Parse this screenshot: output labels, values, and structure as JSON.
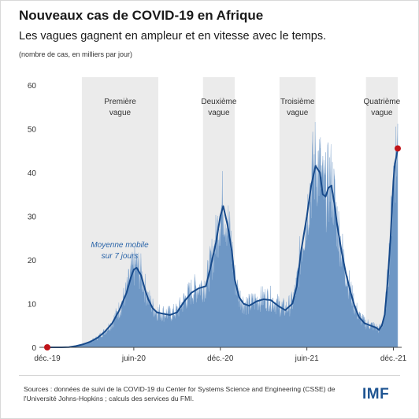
{
  "title": "Nouveaux cas de COVID-19 en Afrique",
  "subtitle": "Les vagues gagnent en ampleur et en vitesse avec le temps.",
  "unit_note": "(nombre de cas, en milliers par jour)",
  "footer": "Sources : données de suivi de la COVID-19 du Center for Systems Science and Engineering (CSSE) de l'Université Johns-Hopkins ; calculs des services du FMI.",
  "logo": "IMF",
  "colors": {
    "area": "#6e97c5",
    "line": "#174a8b",
    "wave_band": "#ebebeb",
    "marker": "#c0141a",
    "annotation": "#2a64a8"
  },
  "chart_data": {
    "type": "area",
    "ylim": [
      0,
      60
    ],
    "yticks": [
      0,
      10,
      20,
      30,
      40,
      50,
      60
    ],
    "xlim": [
      0,
      24.3
    ],
    "xticks": [
      {
        "x": 0,
        "label": "déc.-19"
      },
      {
        "x": 6,
        "label": "juin-20"
      },
      {
        "x": 12,
        "label": "déc.-20"
      },
      {
        "x": 18,
        "label": "juin-21"
      },
      {
        "x": 24,
        "label": "déc.-21"
      }
    ],
    "waves": [
      {
        "label_line1": "Première",
        "label_line2": "vague",
        "start": 2.4,
        "end": 7.7
      },
      {
        "label_line1": "Deuxième",
        "label_line2": "vague",
        "start": 10.8,
        "end": 13.0
      },
      {
        "label_line1": "Troisième",
        "label_line2": "vague",
        "start": 16.1,
        "end": 18.6
      },
      {
        "label_line1": "Quatrième",
        "label_line2": "vague",
        "start": 22.1,
        "end": 24.3
      }
    ],
    "annotation": {
      "line1": "Moyenne mobile",
      "line2": "sur 7 jours"
    },
    "moving_average": {
      "name": "Moyenne mobile sur 7 jours",
      "points": [
        [
          0,
          0
        ],
        [
          1.0,
          0
        ],
        [
          1.5,
          0.05
        ],
        [
          2.0,
          0.3
        ],
        [
          2.5,
          0.7
        ],
        [
          3.0,
          1.3
        ],
        [
          3.5,
          2.2
        ],
        [
          4.0,
          3.6
        ],
        [
          4.5,
          5.5
        ],
        [
          5.0,
          8.5
        ],
        [
          5.5,
          12.5
        ],
        [
          5.8,
          16.0
        ],
        [
          6.0,
          17.8
        ],
        [
          6.2,
          18.2
        ],
        [
          6.5,
          16.5
        ],
        [
          6.8,
          13.0
        ],
        [
          7.0,
          11.0
        ],
        [
          7.3,
          9.0
        ],
        [
          7.6,
          8.0
        ],
        [
          8.0,
          7.7
        ],
        [
          8.5,
          7.4
        ],
        [
          9.0,
          8.0
        ],
        [
          9.5,
          10.5
        ],
        [
          10.0,
          12.5
        ],
        [
          10.5,
          13.5
        ],
        [
          11.0,
          14.0
        ],
        [
          11.3,
          18.0
        ],
        [
          11.7,
          24.0
        ],
        [
          12.0,
          30.0
        ],
        [
          12.2,
          32.3
        ],
        [
          12.5,
          28.0
        ],
        [
          12.8,
          22.0
        ],
        [
          13.0,
          15.5
        ],
        [
          13.3,
          11.5
        ],
        [
          13.6,
          10.0
        ],
        [
          14.0,
          9.5
        ],
        [
          14.5,
          10.5
        ],
        [
          15.0,
          11.0
        ],
        [
          15.5,
          10.8
        ],
        [
          16.0,
          9.5
        ],
        [
          16.5,
          8.5
        ],
        [
          17.0,
          10.0
        ],
        [
          17.3,
          14.0
        ],
        [
          17.6,
          22.0
        ],
        [
          18.0,
          30.0
        ],
        [
          18.3,
          37.0
        ],
        [
          18.6,
          41.5
        ],
        [
          18.9,
          40.0
        ],
        [
          19.1,
          35.0
        ],
        [
          19.3,
          34.5
        ],
        [
          19.5,
          36.5
        ],
        [
          19.7,
          37.0
        ],
        [
          19.9,
          33.0
        ],
        [
          20.1,
          28.0
        ],
        [
          20.4,
          22.0
        ],
        [
          20.7,
          17.0
        ],
        [
          21.0,
          13.0
        ],
        [
          21.3,
          9.5
        ],
        [
          21.6,
          7.0
        ],
        [
          22.0,
          5.5
        ],
        [
          22.4,
          5.0
        ],
        [
          22.8,
          4.5
        ],
        [
          23.0,
          4.0
        ],
        [
          23.2,
          5.0
        ],
        [
          23.4,
          7.5
        ],
        [
          23.6,
          15.0
        ],
        [
          23.8,
          25.0
        ],
        [
          24.0,
          38.0
        ],
        [
          24.1,
          42.0
        ],
        [
          24.2,
          43.5
        ],
        [
          24.3,
          45.5
        ]
      ]
    },
    "markers": [
      {
        "x": 0,
        "y": 0
      },
      {
        "x": 24.3,
        "y": 45.5
      }
    ]
  }
}
